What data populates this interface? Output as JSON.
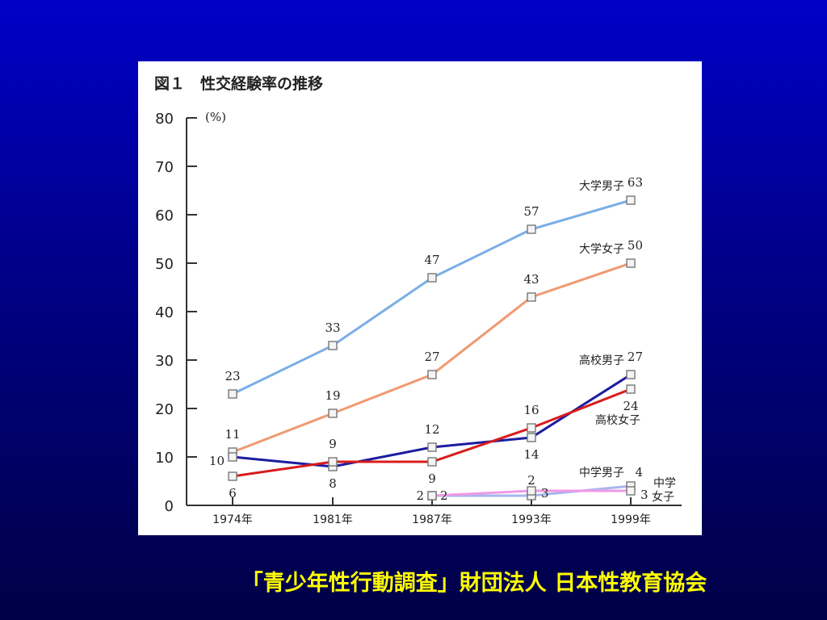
{
  "chart_data": {
    "type": "line",
    "title": "図１　性交経験率の推移",
    "y_unit": "(%)",
    "ylim": [
      0,
      80
    ],
    "y_ticks": [
      0,
      10,
      20,
      30,
      40,
      50,
      60,
      70,
      80
    ],
    "categories": [
      "1974年",
      "1981年",
      "1987年",
      "1993年",
      "1999年"
    ],
    "grid": false,
    "series": [
      {
        "name": "大学男子",
        "color": "#7aaee6",
        "values": [
          23,
          33,
          47,
          57,
          63
        ]
      },
      {
        "name": "大学女子",
        "color": "#f09a72",
        "values": [
          11,
          19,
          27,
          43,
          50
        ]
      },
      {
        "name": "高校男子",
        "color": "#1c1ca0",
        "values": [
          10,
          8,
          12,
          14,
          27
        ]
      },
      {
        "name": "高校女子",
        "color": "#d81c1c",
        "values": [
          6,
          9,
          9,
          16,
          24
        ]
      },
      {
        "name": "中学男子",
        "color": "#a6b6ee",
        "values": [
          null,
          null,
          2,
          2,
          4
        ]
      },
      {
        "name": "中学女子",
        "color": "#f09ae6",
        "values": [
          null,
          null,
          2,
          3,
          3
        ]
      }
    ]
  },
  "caption": "「青少年性行動調査」財団法人 日本性教育協会"
}
